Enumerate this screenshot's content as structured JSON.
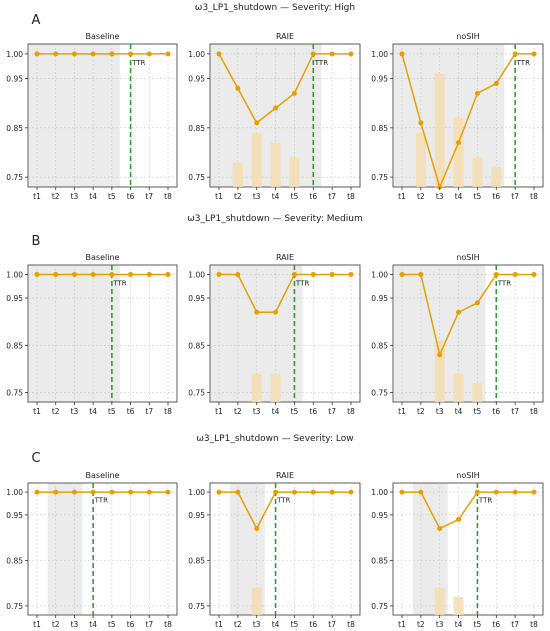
{
  "colors": {
    "line": "#E69F00",
    "bar": "#F5DEB3",
    "shade": "#EBEBEB",
    "ttr": "#2CA02C",
    "grid": "#BDBDBD"
  },
  "tick_labels_x": [
    "t1",
    "t2",
    "t3",
    "t4",
    "t5",
    "t6",
    "t7",
    "t8"
  ],
  "ttr_label": "TTR",
  "chart_data": [
    {
      "panel_letter": "A",
      "title": "ω3_LP1_shutdown — Severity: High",
      "subplots": [
        {
          "type": "line",
          "title": "Baseline",
          "x": [
            "t1",
            "t2",
            "t3",
            "t4",
            "t5",
            "t6",
            "t7",
            "t8"
          ],
          "values": [
            1.0,
            1.0,
            1.0,
            1.0,
            1.0,
            1.0,
            1.0,
            1.0
          ],
          "bars": [
            null,
            null,
            null,
            null,
            null,
            null,
            null,
            null
          ],
          "shade": [
            "t1",
            "t5"
          ],
          "ttr_at": "t6",
          "ylim": [
            0.73,
            1.02
          ],
          "yticks": [
            "1.00",
            "0.95",
            "0.85",
            "0.75"
          ]
        },
        {
          "type": "line",
          "title": "RAIE",
          "x": [
            "t1",
            "t2",
            "t3",
            "t4",
            "t5",
            "t6",
            "t7",
            "t8"
          ],
          "values": [
            1.0,
            0.93,
            0.86,
            0.89,
            0.92,
            1.0,
            1.0,
            1.0
          ],
          "bars": [
            null,
            0.78,
            0.84,
            0.82,
            0.79,
            null,
            null,
            null
          ],
          "shade": [
            "t1",
            "t6"
          ],
          "ttr_at": "t6",
          "ylim": [
            0.73,
            1.02
          ],
          "yticks": [
            "1.00",
            "0.95",
            "0.85",
            "0.75"
          ]
        },
        {
          "type": "line",
          "title": "noSIH",
          "x": [
            "t1",
            "t2",
            "t3",
            "t4",
            "t5",
            "t6",
            "t7",
            "t8"
          ],
          "values": [
            1.0,
            0.86,
            0.73,
            0.82,
            0.92,
            0.94,
            1.0,
            1.0
          ],
          "bars": [
            null,
            0.84,
            0.96,
            0.87,
            0.79,
            0.77,
            null,
            null
          ],
          "shade": [
            "t1",
            "t6"
          ],
          "ttr_at": "t7",
          "ylim": [
            0.73,
            1.02
          ],
          "yticks": [
            "1.00",
            "0.95",
            "0.85",
            "0.75"
          ]
        }
      ]
    },
    {
      "panel_letter": "B",
      "title": "ω3_LP1_shutdown — Severity: Medium",
      "subplots": [
        {
          "type": "line",
          "title": "Baseline",
          "x": [
            "t1",
            "t2",
            "t3",
            "t4",
            "t5",
            "t6",
            "t7",
            "t8"
          ],
          "values": [
            1.0,
            1.0,
            1.0,
            1.0,
            1.0,
            1.0,
            1.0,
            1.0
          ],
          "bars": [
            null,
            null,
            null,
            null,
            null,
            null,
            null,
            null
          ],
          "shade": [
            "t1",
            "t5"
          ],
          "ttr_at": "t5",
          "ylim": [
            0.73,
            1.02
          ],
          "yticks": [
            "1.00",
            "0.95",
            "0.85",
            "0.75"
          ]
        },
        {
          "type": "line",
          "title": "RAIE",
          "x": [
            "t1",
            "t2",
            "t3",
            "t4",
            "t5",
            "t6",
            "t7",
            "t8"
          ],
          "values": [
            1.0,
            1.0,
            0.92,
            0.92,
            1.0,
            1.0,
            1.0,
            1.0
          ],
          "bars": [
            null,
            null,
            0.79,
            0.79,
            null,
            null,
            null,
            null
          ],
          "shade": [
            "t1",
            "t5"
          ],
          "ttr_at": "t5",
          "ylim": [
            0.73,
            1.02
          ],
          "yticks": [
            "1.00",
            "0.95",
            "0.85",
            "0.75"
          ]
        },
        {
          "type": "line",
          "title": "noSIH",
          "x": [
            "t1",
            "t2",
            "t3",
            "t4",
            "t5",
            "t6",
            "t7",
            "t8"
          ],
          "values": [
            1.0,
            1.0,
            0.83,
            0.92,
            0.94,
            1.0,
            1.0,
            1.0
          ],
          "bars": [
            null,
            null,
            0.86,
            0.79,
            0.77,
            null,
            null,
            null
          ],
          "shade": [
            "t1",
            "t5"
          ],
          "ttr_at": "t6",
          "ylim": [
            0.73,
            1.02
          ],
          "yticks": [
            "1.00",
            "0.95",
            "0.85",
            "0.75"
          ]
        }
      ]
    },
    {
      "panel_letter": "C",
      "title": "ω3_LP1_shutdown — Severity: Low",
      "subplots": [
        {
          "type": "line",
          "title": "Baseline",
          "x": [
            "t1",
            "t2",
            "t3",
            "t4",
            "t5",
            "t6",
            "t7",
            "t8"
          ],
          "values": [
            1.0,
            1.0,
            1.0,
            1.0,
            1.0,
            1.0,
            1.0,
            1.0
          ],
          "bars": [
            null,
            null,
            null,
            null,
            null,
            null,
            null,
            null
          ],
          "shade": [
            "t2",
            "t3"
          ],
          "ttr_at": "t4",
          "ylim": [
            0.73,
            1.02
          ],
          "yticks": [
            "1.00",
            "0.95",
            "0.85",
            "0.75"
          ]
        },
        {
          "type": "line",
          "title": "RAIE",
          "x": [
            "t1",
            "t2",
            "t3",
            "t4",
            "t5",
            "t6",
            "t7",
            "t8"
          ],
          "values": [
            1.0,
            1.0,
            0.92,
            1.0,
            1.0,
            1.0,
            1.0,
            1.0
          ],
          "bars": [
            null,
            null,
            0.79,
            null,
            null,
            null,
            null,
            null
          ],
          "shade": [
            "t2",
            "t3"
          ],
          "ttr_at": "t4",
          "ylim": [
            0.73,
            1.02
          ],
          "yticks": [
            "1.00",
            "0.95",
            "0.85",
            "0.75"
          ]
        },
        {
          "type": "line",
          "title": "noSIH",
          "x": [
            "t1",
            "t2",
            "t3",
            "t4",
            "t5",
            "t6",
            "t7",
            "t8"
          ],
          "values": [
            1.0,
            1.0,
            0.92,
            0.94,
            1.0,
            1.0,
            1.0,
            1.0
          ],
          "bars": [
            null,
            null,
            0.79,
            0.77,
            null,
            null,
            null,
            null
          ],
          "shade": [
            "t2",
            "t3"
          ],
          "ttr_at": "t5",
          "ylim": [
            0.73,
            1.02
          ],
          "yticks": [
            "1.00",
            "0.95",
            "0.85",
            "0.75"
          ]
        }
      ]
    }
  ]
}
